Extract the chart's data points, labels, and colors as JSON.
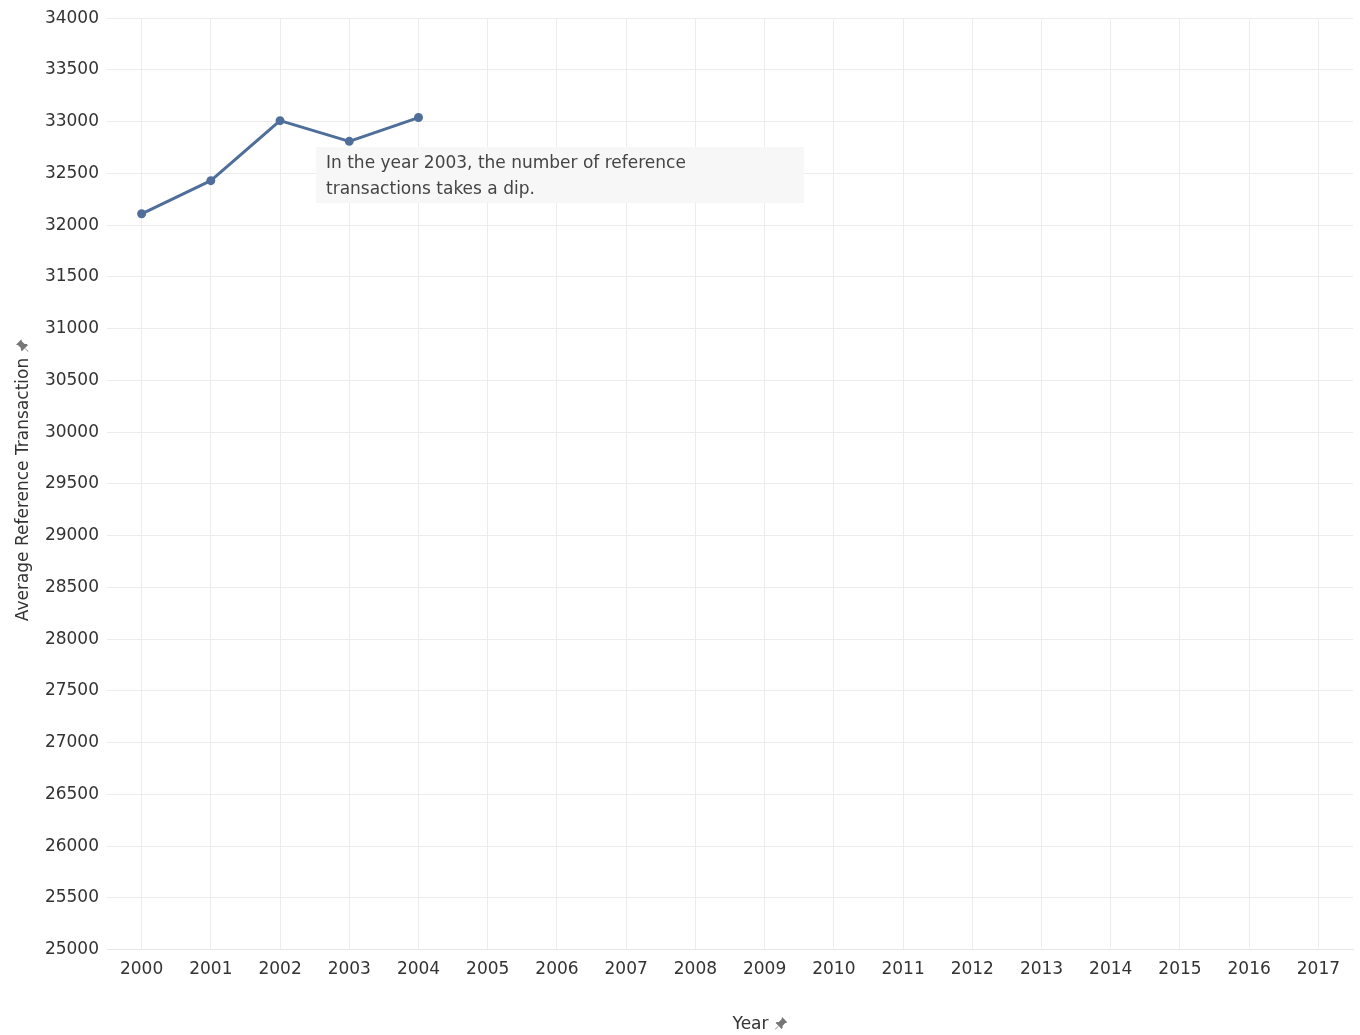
{
  "chart_data": {
    "type": "line",
    "xlabel": "Year",
    "ylabel": "Average Reference Transaction",
    "categories": [
      "2000",
      "2001",
      "2002",
      "2003",
      "2004",
      "2005",
      "2006",
      "2007",
      "2008",
      "2009",
      "2010",
      "2011",
      "2012",
      "2013",
      "2014",
      "2015",
      "2016",
      "2017"
    ],
    "series": [
      {
        "color": "#4f6f9a",
        "values": [
          32110,
          32430,
          33010,
          32810,
          33040,
          null,
          null,
          null,
          null,
          null,
          null,
          null,
          null,
          null,
          null,
          null,
          null,
          null
        ]
      }
    ],
    "ylim": [
      25000,
      34000
    ],
    "yticks": [
      25000,
      25500,
      26000,
      26500,
      27000,
      27500,
      28000,
      28500,
      29000,
      29500,
      30000,
      30500,
      31000,
      31500,
      32000,
      32500,
      33000,
      33500,
      34000
    ],
    "grid": true,
    "legend": false,
    "marker": "circle",
    "line_style": "solid",
    "annotations": [
      "In the year 2003, the number of reference transactions takes a dip."
    ]
  }
}
